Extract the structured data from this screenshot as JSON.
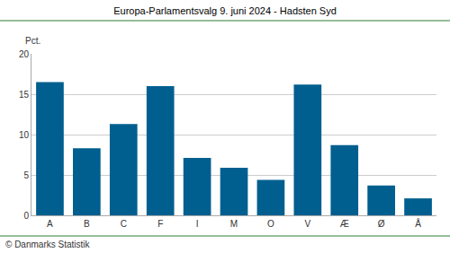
{
  "chart_data": {
    "type": "bar",
    "title": "Europa-Parlamentsvalg 9. juni 2024 - Hadsten Syd",
    "ylabel": "Pct.",
    "annotations": [
      "© Danmarks Statistik"
    ],
    "categories": [
      "A",
      "B",
      "C",
      "F",
      "I",
      "M",
      "O",
      "V",
      "Æ",
      "Ø",
      "Å"
    ],
    "values": [
      16.5,
      8.3,
      11.3,
      16.0,
      7.1,
      5.9,
      4.4,
      16.2,
      8.7,
      3.7,
      2.1
    ],
    "color": "#005f8f",
    "ylim": [
      0,
      20
    ],
    "yticks": [
      0,
      5,
      10,
      15,
      20
    ],
    "grid": true
  }
}
